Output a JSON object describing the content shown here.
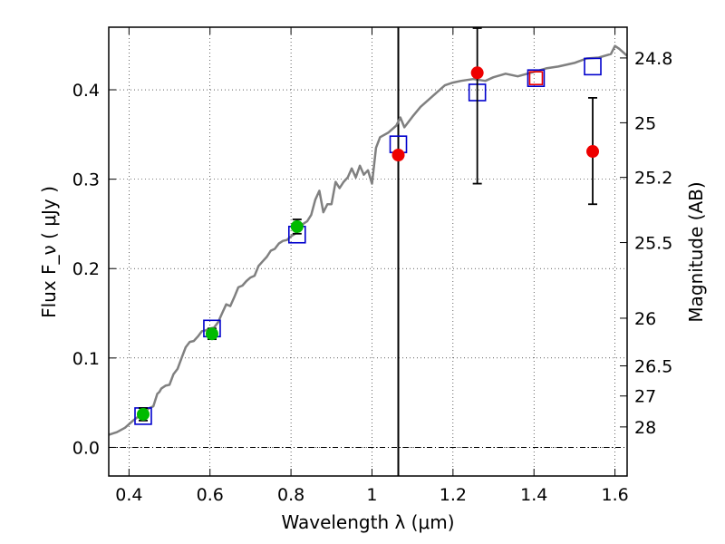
{
  "chart_data": {
    "type": "scatter",
    "xlabel": "Wavelength λ (μm)",
    "ylabel": "Flux F_ν ( μJy )",
    "y2label": "Magnitude (AB)",
    "xlim": [
      0.35,
      1.63
    ],
    "ylim": [
      -0.032,
      0.47
    ],
    "grid": true,
    "x_ticks": [
      0.4,
      0.6,
      0.8,
      1.0,
      1.2,
      1.4,
      1.6
    ],
    "x_tick_labels": [
      "0.4",
      "0.6",
      "0.8",
      "1",
      "1.2",
      "1.4",
      "1.6"
    ],
    "y_ticks": [
      0.0,
      0.1,
      0.2,
      0.3,
      0.4
    ],
    "y_tick_labels": [
      "0.0",
      "0.1",
      "0.2",
      "0.3",
      "0.4"
    ],
    "y2_ticks": [
      {
        "label": "24.8",
        "flux": 0.4356
      },
      {
        "label": "25",
        "flux": 0.3631
      },
      {
        "label": "25.2",
        "flux": 0.302
      },
      {
        "label": "25.5",
        "flux": 0.2291
      },
      {
        "label": "26",
        "flux": 0.1445
      },
      {
        "label": "26.5",
        "flux": 0.0912
      },
      {
        "label": "27",
        "flux": 0.0575
      },
      {
        "label": "28",
        "flux": 0.0229
      }
    ],
    "vertical_line_x": 1.065,
    "series": [
      {
        "role": "template-spectrum",
        "style": "line",
        "color": "#808080",
        "x": [
          0.35,
          0.37,
          0.39,
          0.41,
          0.425,
          0.44,
          0.45,
          0.46,
          0.47,
          0.475,
          0.48,
          0.49,
          0.5,
          0.51,
          0.52,
          0.53,
          0.54,
          0.55,
          0.56,
          0.57,
          0.58,
          0.59,
          0.6,
          0.61,
          0.62,
          0.63,
          0.64,
          0.65,
          0.66,
          0.67,
          0.68,
          0.69,
          0.7,
          0.71,
          0.72,
          0.73,
          0.74,
          0.75,
          0.76,
          0.77,
          0.78,
          0.79,
          0.8,
          0.81,
          0.82,
          0.83,
          0.84,
          0.85,
          0.86,
          0.87,
          0.88,
          0.89,
          0.9,
          0.91,
          0.92,
          0.93,
          0.94,
          0.95,
          0.96,
          0.97,
          0.98,
          0.99,
          1.0,
          1.01,
          1.02,
          1.04,
          1.06,
          1.07,
          1.08,
          1.1,
          1.12,
          1.15,
          1.18,
          1.2,
          1.22,
          1.25,
          1.28,
          1.3,
          1.33,
          1.36,
          1.4,
          1.43,
          1.46,
          1.5,
          1.53,
          1.56,
          1.59,
          1.6,
          1.61,
          1.62,
          1.63
        ],
        "y": [
          0.014,
          0.017,
          0.022,
          0.03,
          0.035,
          0.04,
          0.044,
          0.046,
          0.06,
          0.062,
          0.066,
          0.069,
          0.07,
          0.082,
          0.088,
          0.1,
          0.112,
          0.118,
          0.119,
          0.124,
          0.13,
          0.131,
          0.133,
          0.134,
          0.14,
          0.15,
          0.16,
          0.158,
          0.168,
          0.179,
          0.181,
          0.186,
          0.19,
          0.192,
          0.203,
          0.208,
          0.213,
          0.22,
          0.222,
          0.228,
          0.231,
          0.232,
          0.236,
          0.239,
          0.243,
          0.25,
          0.253,
          0.26,
          0.277,
          0.287,
          0.263,
          0.272,
          0.272,
          0.297,
          0.29,
          0.297,
          0.302,
          0.312,
          0.302,
          0.315,
          0.305,
          0.31,
          0.295,
          0.335,
          0.347,
          0.352,
          0.36,
          0.369,
          0.358,
          0.37,
          0.381,
          0.393,
          0.405,
          0.408,
          0.41,
          0.412,
          0.41,
          0.414,
          0.418,
          0.415,
          0.42,
          0.424,
          0.426,
          0.43,
          0.435,
          0.436,
          0.44,
          0.449,
          0.446,
          0.442,
          0.438
        ]
      },
      {
        "role": "model-photometry",
        "style": "open-square",
        "color": "#0000cc",
        "x": [
          0.435,
          0.605,
          0.815,
          1.065,
          1.26,
          1.405,
          1.545
        ],
        "y": [
          0.035,
          0.133,
          0.238,
          0.339,
          0.397,
          0.413,
          0.426
        ]
      },
      {
        "role": "observed-detections",
        "style": "filled-circle",
        "color": "#00bb00",
        "x": [
          0.435,
          0.605,
          0.815
        ],
        "y": [
          0.037,
          0.127,
          0.247
        ],
        "yerr": [
          0.007,
          0.006,
          0.008
        ]
      },
      {
        "role": "observed-nir",
        "style": "filled-circle",
        "color": "#ee0000",
        "x": [
          1.065,
          1.26,
          1.545
        ],
        "y": [
          0.327,
          0.419,
          0.331
        ],
        "yerr_low": [
          0,
          0.124,
          0.059
        ],
        "yerr_high": [
          0,
          0.05,
          0.06
        ]
      },
      {
        "role": "open-marker",
        "style": "open-square-small",
        "color": "#ee0000",
        "x": [
          1.405
        ],
        "y": [
          0.413
        ]
      }
    ]
  }
}
